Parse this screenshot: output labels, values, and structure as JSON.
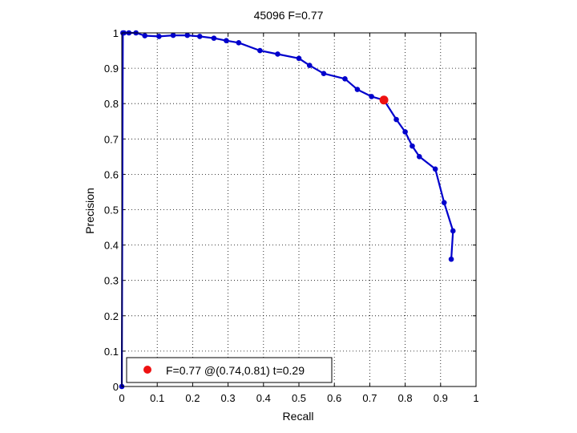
{
  "chart_data": {
    "type": "line",
    "title": "45096 F=0.77",
    "xlabel": "Recall",
    "ylabel": "Precision",
    "xlim": [
      0,
      1
    ],
    "ylim": [
      0,
      1
    ],
    "x_ticks": [
      0,
      0.1,
      0.2,
      0.3,
      0.4,
      0.5,
      0.6,
      0.7,
      0.8,
      0.9,
      1
    ],
    "y_ticks": [
      0,
      0.1,
      0.2,
      0.3,
      0.4,
      0.5,
      0.6,
      0.7,
      0.8,
      0.9,
      1
    ],
    "x_tick_labels": [
      "0",
      "0.1",
      "0.2",
      "0.3",
      "0.4",
      "0.5",
      "0.6",
      "0.7",
      "0.8",
      "0.9",
      "1"
    ],
    "y_tick_labels": [
      "0",
      "0.1",
      "0.2",
      "0.3",
      "0.4",
      "0.5",
      "0.6",
      "0.7",
      "0.8",
      "0.9",
      "1"
    ],
    "grid": true,
    "series": [
      {
        "color": "#0000cc",
        "x": [
          0,
          0.003,
          0.006,
          0.02,
          0.04,
          0.065,
          0.105,
          0.145,
          0.185,
          0.22,
          0.26,
          0.295,
          0.33,
          0.39,
          0.44,
          0.5,
          0.53,
          0.57,
          0.63,
          0.665,
          0.705,
          0.74,
          0.775,
          0.8,
          0.82,
          0.84,
          0.885,
          0.91,
          0.935,
          0.93
        ],
        "y": [
          0,
          1.0,
          1.0,
          1.0,
          1.0,
          0.992,
          0.99,
          0.993,
          0.993,
          0.99,
          0.985,
          0.978,
          0.972,
          0.95,
          0.94,
          0.928,
          0.908,
          0.885,
          0.87,
          0.84,
          0.82,
          0.81,
          0.755,
          0.72,
          0.68,
          0.65,
          0.615,
          0.52,
          0.44,
          0.36
        ]
      }
    ],
    "highlight": {
      "x": 0.74,
      "y": 0.81,
      "color": "#ee1111"
    },
    "legend": {
      "location": "bottom-left",
      "label": "F=0.77 @(0.74,0.81) t=0.29"
    }
  }
}
